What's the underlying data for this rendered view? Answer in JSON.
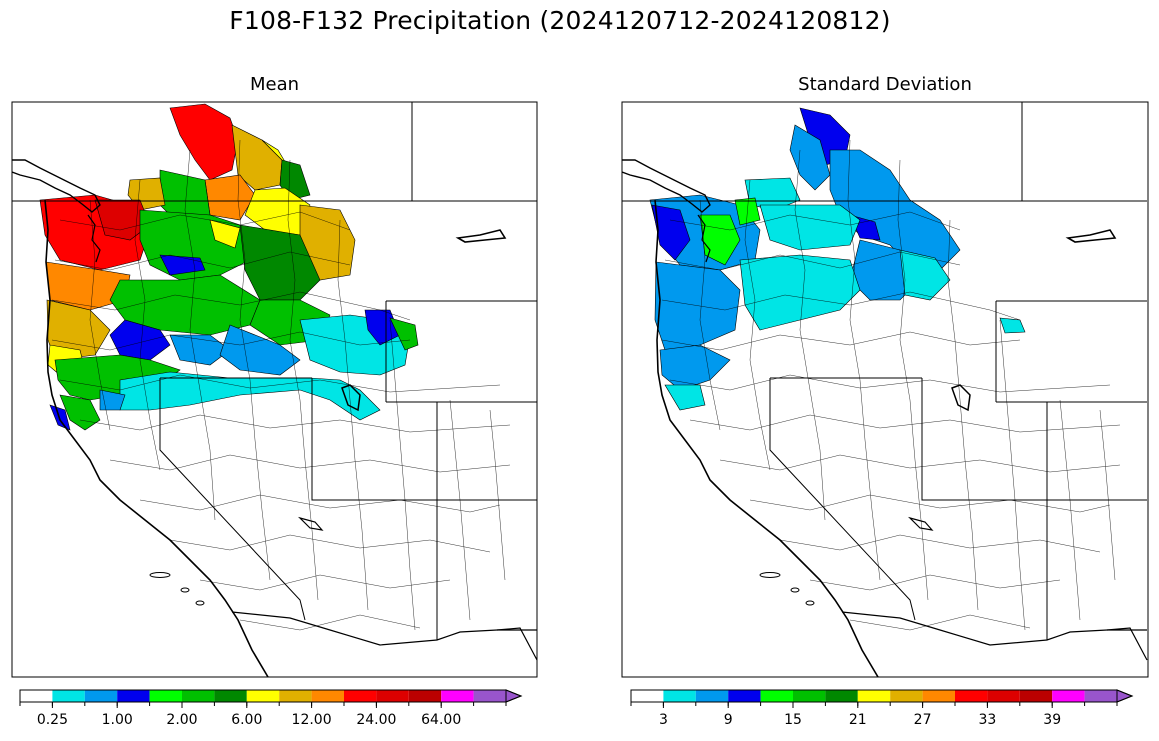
{
  "figure": {
    "title": "F108-F132 Precipitation (2024120712-2024120812)"
  },
  "panels": [
    {
      "name": "mean",
      "title": "Mean",
      "colorbar": {
        "colors": [
          "#ffffff",
          "#00e5e5",
          "#0099ee",
          "#0000ee",
          "#00ff00",
          "#00c000",
          "#008800",
          "#ffff00",
          "#e0b000",
          "#ff8800",
          "#ff0000",
          "#dd0000",
          "#bb0000",
          "#ff00ff",
          "#9955cc"
        ],
        "tick_labels": [
          "0.25",
          "1.00",
          "2.00",
          "6.00",
          "12.00",
          "24.00",
          "64.00"
        ],
        "extend": "max"
      }
    },
    {
      "name": "stddev",
      "title": "Standard Deviation",
      "colorbar": {
        "colors": [
          "#ffffff",
          "#00e5e5",
          "#0099ee",
          "#0000ee",
          "#00ff00",
          "#00c000",
          "#008800",
          "#ffff00",
          "#e0b000",
          "#ff8800",
          "#ff0000",
          "#dd0000",
          "#bb0000",
          "#ff00ff",
          "#9955cc"
        ],
        "tick_labels": [
          "3",
          "9",
          "15",
          "21",
          "27",
          "33",
          "39"
        ],
        "extend": "max"
      }
    }
  ]
}
